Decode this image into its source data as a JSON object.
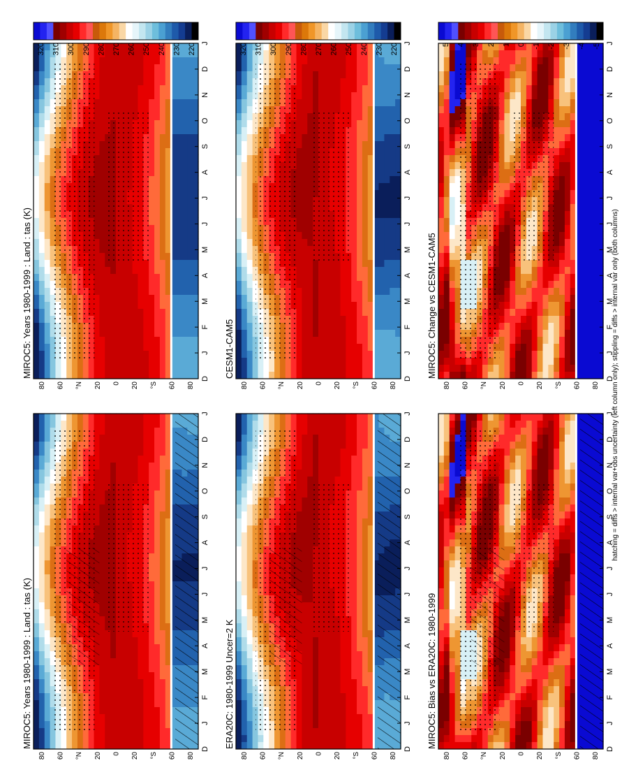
{
  "footer": "hatching = diffs > internal var+obs uncertainty (left column only); stippling = diffs > internal var only (both columns)",
  "months": [
    "D",
    "J",
    "F",
    "M",
    "A",
    "M",
    "J",
    "J",
    "A",
    "S",
    "O",
    "N",
    "D",
    "J"
  ],
  "lat_ticks": [
    "80",
    "60",
    "°N",
    "20",
    "0",
    "20",
    "°S",
    "60",
    "80"
  ],
  "abs_colorbar": [
    "320",
    "310",
    "300",
    "290",
    "280",
    "270",
    "260",
    "250",
    "240",
    "230",
    "220"
  ],
  "diff_colorbar": [
    "5",
    "4",
    "3",
    "2",
    "1",
    "0",
    "-1",
    "-2",
    "-3",
    "-4",
    "-5"
  ],
  "colors": {
    "abs": [
      "#0a0ad2",
      "#2323f0",
      "#5050ff",
      "#7a0000",
      "#a00000",
      "#c80000",
      "#e60000",
      "#ff2a2a",
      "#ff5555",
      "#c85a0a",
      "#dc780a",
      "#f09628",
      "#f5b463",
      "#fad7a5",
      "#ffffff",
      "#e6f5fa",
      "#c3e6f0",
      "#9bd2e6",
      "#6ebedc",
      "#4ba0d2",
      "#327dbe",
      "#1e5aaa",
      "#143c91",
      "#0a1e5a",
      "#000000"
    ],
    "diff": [
      "#0a0ad2",
      "#2323f0",
      "#5050ff",
      "#7a0000",
      "#a00000",
      "#c80000",
      "#e60000",
      "#ff2a2a",
      "#ff5555",
      "#c85a0a",
      "#dc780a",
      "#f09628",
      "#f5b463",
      "#fad7a5",
      "#ffffff",
      "#e6f5fa",
      "#c3e6f0",
      "#9bd2e6",
      "#6ebedc",
      "#4ba0d2",
      "#327dbe",
      "#1e5aaa",
      "#143c91",
      "#0a1e5a",
      "#000000"
    ]
  },
  "chart_data": [
    {
      "type": "heatmap",
      "title": "MIROC5: Years 1980-1999 : Land : tas (K)",
      "x": "months D..J",
      "y": "latitude 90S..90N",
      "colorbar": [
        220,
        320
      ],
      "value_range": [
        215,
        303
      ]
    },
    {
      "type": "heatmap",
      "title": "MIROC5: Years 1980-1999 : Land : tas (K)",
      "x": "months D..J",
      "y": "latitude 90S..90N",
      "colorbar": [
        220,
        320
      ],
      "value_range": [
        215,
        303
      ],
      "hatching": true
    },
    {
      "type": "heatmap",
      "title": "CESM1-CAM5",
      "x": "months D..J",
      "y": "latitude 90S..90N",
      "colorbar": [
        220,
        320
      ],
      "value_range": [
        215,
        302
      ]
    },
    {
      "type": "heatmap",
      "title": "ERA20C: 1980-1999 Uncer=2 K",
      "x": "months D..J",
      "y": "latitude 90S..90N",
      "colorbar": [
        220,
        320
      ],
      "value_range": [
        215,
        302
      ],
      "hatching": true
    },
    {
      "type": "heatmap",
      "title": "MIROC5: Change vs CESM1-CAM5",
      "x": "months D..J",
      "y": "latitude 90S..90N",
      "colorbar": [
        -5,
        5
      ],
      "value_range": [
        -6,
        6
      ]
    },
    {
      "type": "heatmap",
      "title": "MIROC5: Bias vs ERA20C: 1980-1999",
      "x": "months D..J",
      "y": "latitude 90S..90N",
      "colorbar": [
        -5,
        5
      ],
      "value_range": [
        -6,
        6
      ],
      "hatching": true
    }
  ]
}
